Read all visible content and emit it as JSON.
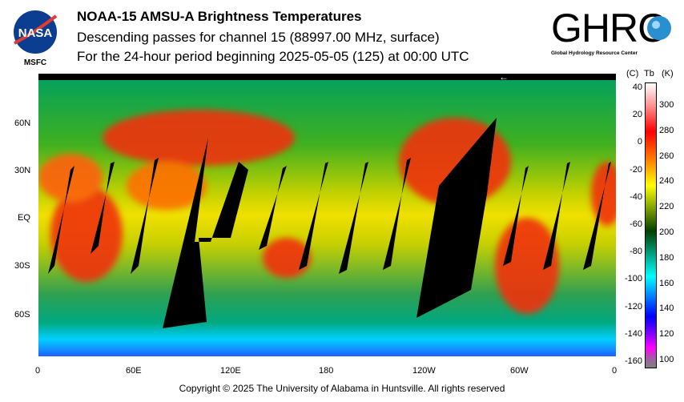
{
  "header": {
    "title": "NOAA-15 AMSU-A Brightness Temperatures",
    "subtitle": "Descending passes for channel 15 (88997.00 MHz, surface)",
    "period": "For the 24-hour period beginning 2025-05-05 (125) at 00:00 UTC"
  },
  "logos": {
    "left": {
      "text": "NASA",
      "caption": "MSFC"
    },
    "right": {
      "text": "GHRC",
      "caption": "Global Hydrology Resource Center"
    }
  },
  "map": {
    "x_ticks": [
      "0",
      "60E",
      "120E",
      "180",
      "120W",
      "60W",
      "0"
    ],
    "y_ticks": [
      "60N",
      "30N",
      "EQ",
      "30S",
      "60S"
    ],
    "direction_arrow": "←"
  },
  "colorbar": {
    "header_c": "(C)",
    "header_tb": "Tb",
    "header_k": "(K)",
    "celsius_ticks": [
      "40",
      "20",
      "0",
      "-20",
      "-40",
      "-60",
      "-80",
      "-100",
      "-120",
      "-140",
      "-160"
    ],
    "kelvin_ticks": [
      "300",
      "280",
      "260",
      "240",
      "220",
      "200",
      "180",
      "160",
      "140",
      "120",
      "100"
    ],
    "colors": [
      "#ffffff",
      "#ff9090",
      "#ff0000",
      "#ff8000",
      "#ffff00",
      "#80a000",
      "#004000",
      "#00a080",
      "#00ffff",
      "#0080ff",
      "#0000ff",
      "#8000ff",
      "#ff00ff",
      "#a060a0",
      "#808080"
    ]
  },
  "footer": {
    "copyright": "Copyright © 2025 The University of Alabama in Huntsville.  All rights reserved"
  }
}
